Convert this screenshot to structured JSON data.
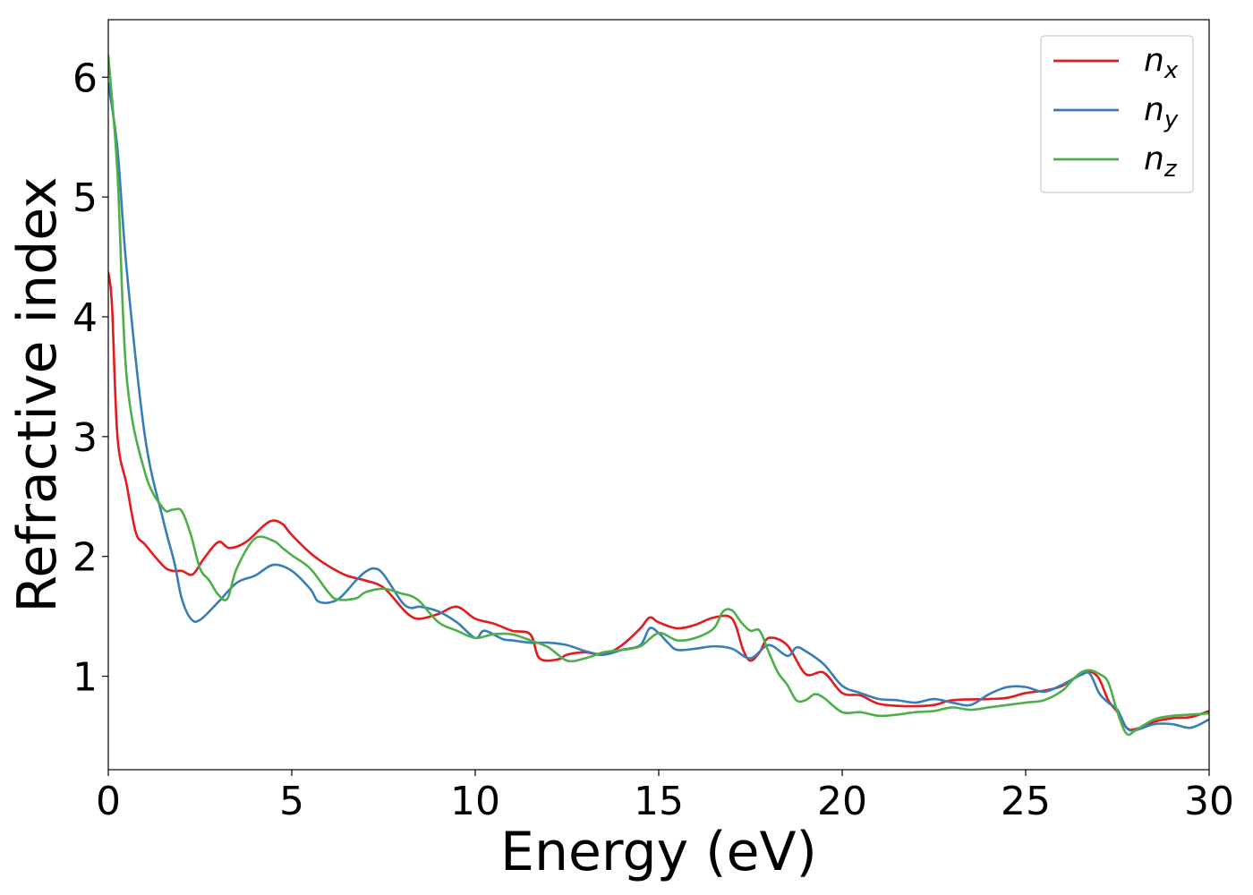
{
  "chart_data": {
    "type": "line",
    "xlabel": "Energy (eV)",
    "ylabel": "Refractive index",
    "xlim": [
      0,
      30
    ],
    "ylim": [
      0.22,
      6.48
    ],
    "xticks": [
      0,
      5,
      10,
      15,
      20,
      25,
      30
    ],
    "yticks": [
      1,
      2,
      3,
      4,
      5,
      6
    ],
    "grid": false,
    "legend_position": "top-right",
    "series": [
      {
        "name": "n",
        "subscript": "x",
        "color": "#e41a1c",
        "x": [
          0,
          0.1,
          0.25,
          0.5,
          0.75,
          1.0,
          1.5,
          1.75,
          2.0,
          2.3,
          2.6,
          3.0,
          3.3,
          3.75,
          4.25,
          4.5,
          4.75,
          5.0,
          5.5,
          6.0,
          6.5,
          7.0,
          7.5,
          8.0,
          8.25,
          8.5,
          9.0,
          9.5,
          10.0,
          10.5,
          11.0,
          11.5,
          11.75,
          12.25,
          12.5,
          13.0,
          13.5,
          14.0,
          14.5,
          14.75,
          15.0,
          15.5,
          16.0,
          16.5,
          17.0,
          17.3,
          17.5,
          17.75,
          18.0,
          18.5,
          19.0,
          19.5,
          20.0,
          20.5,
          21.0,
          21.75,
          22.5,
          23.0,
          24.0,
          24.5,
          25.0,
          25.5,
          26.0,
          26.5,
          26.75,
          27.0,
          27.25,
          27.5,
          27.75,
          28.0,
          28.5,
          29.0,
          29.5,
          30.0
        ],
        "y": [
          4.37,
          4.1,
          3.0,
          2.6,
          2.2,
          2.1,
          1.92,
          1.88,
          1.88,
          1.85,
          1.98,
          2.12,
          2.07,
          2.12,
          2.26,
          2.3,
          2.27,
          2.18,
          2.03,
          1.92,
          1.84,
          1.8,
          1.74,
          1.57,
          1.5,
          1.48,
          1.52,
          1.58,
          1.48,
          1.44,
          1.38,
          1.35,
          1.15,
          1.14,
          1.18,
          1.2,
          1.18,
          1.26,
          1.4,
          1.49,
          1.45,
          1.4,
          1.43,
          1.49,
          1.48,
          1.22,
          1.13,
          1.2,
          1.32,
          1.26,
          1.02,
          1.03,
          0.86,
          0.84,
          0.77,
          0.75,
          0.76,
          0.8,
          0.81,
          0.82,
          0.86,
          0.88,
          0.92,
          1.02,
          1.04,
          0.98,
          0.8,
          0.7,
          0.57,
          0.56,
          0.62,
          0.65,
          0.66,
          0.71
        ]
      },
      {
        "name": "n",
        "subscript": "y",
        "color": "#377eb8",
        "x": [
          0,
          0.25,
          0.5,
          1.0,
          1.5,
          1.8,
          2.0,
          2.25,
          2.5,
          3.0,
          3.5,
          4.0,
          4.5,
          5.0,
          5.5,
          5.75,
          6.25,
          6.75,
          7.0,
          7.25,
          7.5,
          8.0,
          8.25,
          8.5,
          9.0,
          9.5,
          10.0,
          10.25,
          10.75,
          11.0,
          11.5,
          12.0,
          12.5,
          13.0,
          13.5,
          14.0,
          14.5,
          14.75,
          15.0,
          15.25,
          15.5,
          16.0,
          16.5,
          17.0,
          17.5,
          18.0,
          18.5,
          18.75,
          19.0,
          19.5,
          20.0,
          20.5,
          21.0,
          21.5,
          22.0,
          22.5,
          23.0,
          23.5,
          24.0,
          24.5,
          25.0,
          25.5,
          26.0,
          26.5,
          26.75,
          27.0,
          27.25,
          27.5,
          27.75,
          28.0,
          28.5,
          29.0,
          29.5,
          30.0
        ],
        "y": [
          5.95,
          5.4,
          4.4,
          3.0,
          2.3,
          1.95,
          1.65,
          1.48,
          1.47,
          1.62,
          1.78,
          1.84,
          1.93,
          1.88,
          1.73,
          1.62,
          1.64,
          1.8,
          1.87,
          1.9,
          1.85,
          1.62,
          1.57,
          1.58,
          1.54,
          1.45,
          1.32,
          1.38,
          1.31,
          1.3,
          1.28,
          1.28,
          1.26,
          1.21,
          1.18,
          1.22,
          1.26,
          1.4,
          1.36,
          1.28,
          1.22,
          1.23,
          1.25,
          1.23,
          1.15,
          1.26,
          1.17,
          1.24,
          1.21,
          1.1,
          0.92,
          0.86,
          0.81,
          0.8,
          0.78,
          0.81,
          0.78,
          0.76,
          0.85,
          0.91,
          0.91,
          0.87,
          0.93,
          1.01,
          1.02,
          0.86,
          0.78,
          0.72,
          0.57,
          0.55,
          0.6,
          0.6,
          0.57,
          0.64
        ]
      },
      {
        "name": "n",
        "subscript": "z",
        "color": "#4daf4a",
        "x": [
          0,
          0.25,
          0.5,
          1.0,
          1.5,
          1.75,
          2.0,
          2.25,
          2.5,
          2.75,
          3.0,
          3.25,
          3.5,
          4.0,
          4.5,
          4.75,
          5.0,
          5.5,
          6.0,
          6.25,
          6.75,
          7.0,
          7.5,
          8.0,
          8.25,
          8.5,
          9.0,
          9.5,
          10.0,
          10.5,
          11.0,
          11.5,
          12.0,
          12.5,
          13.0,
          13.5,
          14.0,
          14.5,
          15.0,
          15.5,
          16.0,
          16.5,
          16.75,
          17.0,
          17.25,
          17.5,
          17.75,
          18.0,
          18.25,
          18.5,
          18.75,
          19.0,
          19.25,
          19.5,
          20.0,
          20.5,
          21.0,
          21.5,
          22.0,
          22.5,
          23.0,
          23.5,
          24.0,
          24.5,
          25.0,
          25.5,
          26.0,
          26.25,
          26.5,
          26.75,
          27.0,
          27.25,
          27.5,
          27.75,
          28.0,
          28.5,
          29.0,
          29.5,
          30.0
        ],
        "y": [
          6.18,
          5.2,
          3.5,
          2.7,
          2.4,
          2.39,
          2.38,
          2.18,
          1.9,
          1.8,
          1.68,
          1.65,
          1.9,
          2.15,
          2.13,
          2.07,
          2.01,
          1.9,
          1.7,
          1.64,
          1.65,
          1.7,
          1.73,
          1.69,
          1.67,
          1.62,
          1.45,
          1.38,
          1.32,
          1.35,
          1.35,
          1.3,
          1.24,
          1.13,
          1.15,
          1.2,
          1.22,
          1.25,
          1.36,
          1.3,
          1.32,
          1.4,
          1.54,
          1.55,
          1.45,
          1.38,
          1.38,
          1.2,
          1.03,
          0.93,
          0.8,
          0.8,
          0.85,
          0.82,
          0.7,
          0.7,
          0.67,
          0.68,
          0.7,
          0.71,
          0.74,
          0.72,
          0.74,
          0.76,
          0.78,
          0.8,
          0.88,
          0.96,
          1.03,
          1.05,
          1.02,
          0.95,
          0.7,
          0.52,
          0.55,
          0.64,
          0.67,
          0.68,
          0.69
        ]
      }
    ]
  }
}
